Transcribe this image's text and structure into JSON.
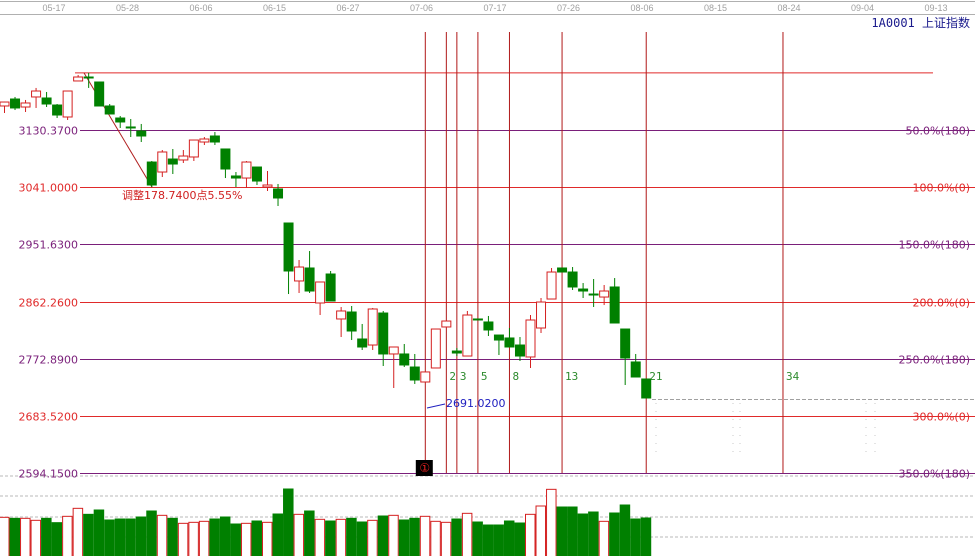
{
  "header": {
    "title": "1A0001 上证指数"
  },
  "colors": {
    "up": "#d42020",
    "down": "#008000",
    "level_red": "#e02a2a",
    "level_purple": "#7a1f7a",
    "time_zone": "#b01818",
    "axis_text": "#a0a0a0",
    "title": "#1a1a8c",
    "low_label": "#2020c0"
  },
  "chart_data": {
    "type": "candlestick",
    "x_tick_labels": [
      "05-17",
      "05-28",
      "06-06",
      "06-15",
      "06-27",
      "07-06",
      "07-17",
      "07-26",
      "08-06",
      "08-15",
      "08-24",
      "09-04",
      "09-13"
    ],
    "y_range": [
      2560,
      3240
    ],
    "fib_levels": [
      {
        "price": 3130.37,
        "price_label": "3130.3700",
        "pct_label": "50.0%(180)",
        "color": "purple"
      },
      {
        "price": 3041.0,
        "price_label": "3041.0000",
        "pct_label": "100.0%(0)",
        "color": "red"
      },
      {
        "price": 2951.63,
        "price_label": "2951.6300",
        "pct_label": "150.0%(180)",
        "color": "purple"
      },
      {
        "price": 2862.26,
        "price_label": "2862.2600",
        "pct_label": "200.0%(0)",
        "color": "red"
      },
      {
        "price": 2772.89,
        "price_label": "2772.8900",
        "pct_label": "250.0%(180)",
        "color": "purple"
      },
      {
        "price": 2683.52,
        "price_label": "2683.5200",
        "pct_label": "300.0%(0)",
        "color": "red"
      },
      {
        "price": 2594.15,
        "price_label": "2594.1500",
        "pct_label": "350.0%(180)",
        "color": "purple"
      }
    ],
    "adjustment_label": "调整178.7400点5.55%",
    "low_label": "2691.0200",
    "time_zone_marker": "①",
    "time_zones": [
      "2",
      "3",
      "5",
      "8",
      "13",
      "21",
      "34"
    ],
    "candles_ohlc": [
      [
        3167.9,
        3175.0,
        3156.9,
        3174.1
      ],
      [
        3178.8,
        3182.0,
        3161.6,
        3164.8
      ],
      [
        3166.3,
        3177.3,
        3158.5,
        3172.6
      ],
      [
        3182.0,
        3196.1,
        3164.8,
        3191.3
      ],
      [
        3180.4,
        3189.8,
        3166.3,
        3171.0
      ],
      [
        3169.4,
        3171.0,
        3149.1,
        3153.8
      ],
      [
        3150.7,
        3191.3,
        3146.0,
        3191.3
      ],
      [
        3207.0,
        3216.4,
        3207.0,
        3213.2
      ],
      [
        3213.2,
        3219.7,
        3196.1,
        3211.7
      ],
      [
        3205.4,
        3205.4,
        3167.9,
        3167.9
      ],
      [
        3167.9,
        3171.0,
        3155.4,
        3155.4
      ],
      [
        3149.1,
        3152.3,
        3133.5,
        3142.9
      ],
      [
        3135.1,
        3147.6,
        3119.4,
        3134.0
      ],
      [
        3128.8,
        3139.8,
        3111.6,
        3121.0
      ],
      [
        3080.3,
        3081.9,
        3041.0,
        3044.4
      ],
      [
        3064.7,
        3099.1,
        3056.9,
        3096.0
      ],
      [
        3085.0,
        3100.7,
        3061.6,
        3077.2
      ],
      [
        3083.5,
        3099.1,
        3078.8,
        3089.7
      ],
      [
        3088.2,
        3114.7,
        3081.9,
        3114.7
      ],
      [
        3111.6,
        3119.4,
        3106.9,
        3116.3
      ],
      [
        3121.0,
        3127.2,
        3106.9,
        3111.6
      ],
      [
        3100.7,
        3100.7,
        3055.3,
        3069.4
      ],
      [
        3058.5,
        3064.7,
        3041.3,
        3055.3
      ],
      [
        3055.3,
        3081.9,
        3039.7,
        3080.3
      ],
      [
        3072.5,
        3072.5,
        3044.4,
        3050.6
      ],
      [
        3041.3,
        3066.3,
        3035.0,
        3044.4
      ],
      [
        3038.2,
        3046.0,
        3011.6,
        3024.1
      ],
      [
        2985.0,
        2985.0,
        2874.0,
        2910.0
      ],
      [
        2894.4,
        2927.2,
        2875.6,
        2916.2
      ],
      [
        2914.7,
        2941.2,
        2875.6,
        2878.7
      ],
      [
        2860.0,
        2892.8,
        2841.2,
        2892.8
      ],
      [
        2905.3,
        2910.0,
        2863.1,
        2863.1
      ],
      [
        2835.0,
        2853.7,
        2806.8,
        2847.5
      ],
      [
        2845.9,
        2855.3,
        2802.1,
        2816.2
      ],
      [
        2803.7,
        2827.2,
        2786.5,
        2791.2
      ],
      [
        2794.3,
        2852.2,
        2786.5,
        2850.6
      ],
      [
        2844.3,
        2847.5,
        2761.5,
        2780.3
      ],
      [
        2780.3,
        2791.2,
        2727.1,
        2791.2
      ],
      [
        2780.3,
        2795.9,
        2759.9,
        2763.1
      ],
      [
        2759.9,
        2780.3,
        2733.4,
        2739.6
      ],
      [
        2736.5,
        2752.2,
        2736.5,
        2752.2
      ],
      [
        2758.4,
        2819.3,
        2758.4,
        2819.3
      ],
      [
        2822.5,
        2831.8,
        2822.5,
        2831.8
      ],
      [
        2784.9,
        2789.6,
        2777.1,
        2781.8
      ],
      [
        2777.1,
        2847.5,
        2777.1,
        2841.2
      ],
      [
        2835.0,
        2835.0,
        2834.0,
        2834.0
      ],
      [
        2830.3,
        2839.7,
        2808.4,
        2817.8
      ],
      [
        2809.9,
        2809.9,
        2778.7,
        2802.1
      ],
      [
        2805.3,
        2820.9,
        2791.2,
        2791.2
      ],
      [
        2794.3,
        2806.8,
        2769.3,
        2777.1
      ],
      [
        2775.6,
        2841.2,
        2758.4,
        2833.4
      ],
      [
        2820.9,
        2867.8,
        2813.1,
        2861.5
      ],
      [
        2866.2,
        2914.7,
        2866.2,
        2908.4
      ],
      [
        2914.7,
        2914.7,
        2908.4,
        2908.4
      ],
      [
        2908.4,
        2916.2,
        2880.3,
        2885.0
      ],
      [
        2881.8,
        2891.2,
        2867.8,
        2878.7
      ],
      [
        2874.0,
        2897.5,
        2853.7,
        2873.0
      ],
      [
        2869.3,
        2888.1,
        2856.8,
        2878.7
      ],
      [
        2885.0,
        2899.0,
        2828.7,
        2828.7
      ],
      [
        2819.3,
        2819.3,
        2731.8,
        2774.0
      ],
      [
        2767.8,
        2780.3,
        2744.3,
        2744.3
      ],
      [
        2741.2,
        2741.2,
        2711.5,
        2711.5
      ]
    ],
    "volume_relative": [
      116,
      113,
      113,
      107,
      113,
      100,
      119,
      143,
      125,
      138,
      108,
      111,
      111,
      117,
      135,
      122,
      113,
      98,
      101,
      104,
      111,
      117,
      96,
      98,
      105,
      101,
      126,
      201,
      125,
      135,
      110,
      105,
      110,
      113,
      102,
      107,
      120,
      122,
      108,
      113,
      119,
      104,
      101,
      111,
      128,
      102,
      93,
      93,
      105,
      99,
      125,
      150,
      200,
      147,
      147,
      126,
      132,
      104,
      129,
      153,
      111,
      114
    ],
    "grid": true
  }
}
